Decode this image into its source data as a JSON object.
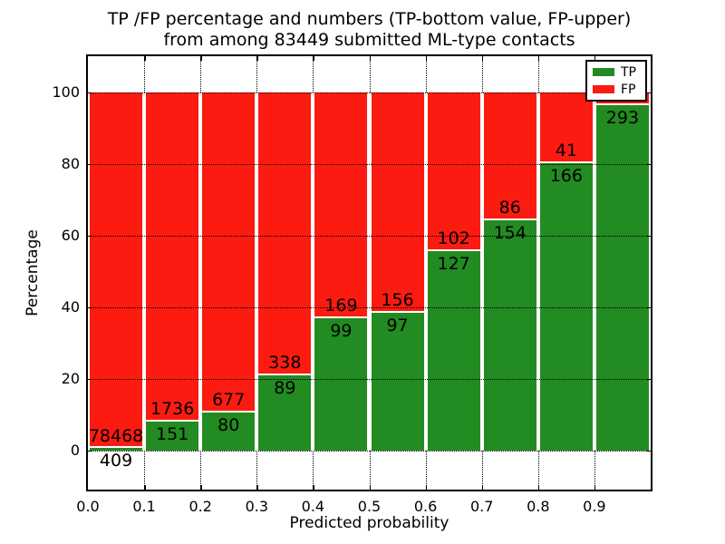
{
  "title": {
    "line1": "TP /FP percentage and numbers (TP-bottom value, FP-upper)",
    "line2": "from among 83449 submitted ML-type contacts"
  },
  "axes": {
    "xlabel": "Predicted probability",
    "ylabel": "Percentage",
    "x_tick_labels": [
      "0.0",
      "0.1",
      "0.2",
      "0.3",
      "0.4",
      "0.5",
      "0.6",
      "0.7",
      "0.8",
      "0.9"
    ],
    "y_tick_labels": [
      "0",
      "20",
      "40",
      "60",
      "80",
      "100"
    ],
    "y_tick_values": [
      0,
      20,
      40,
      60,
      80,
      100
    ]
  },
  "legend": {
    "position": "upper right",
    "items": [
      {
        "label": "TP",
        "color": "#228b22"
      },
      {
        "label": "FP",
        "color": "#fb1b11"
      }
    ]
  },
  "colors": {
    "tp_green": "#228b22",
    "fp_red": "#fb1b11",
    "grid": "#000000",
    "background": "#ffffff"
  },
  "chart_data": {
    "type": "bar",
    "stacked": true,
    "normalized": "each bar stacks to 100%",
    "title": "TP /FP percentage and numbers (TP-bottom value, FP-upper) from among 83449 submitted ML-type contacts",
    "total_submitted": 83449,
    "xlabel": "Predicted probability",
    "ylabel": "Percentage",
    "bin_width": 0.1,
    "ylim": [
      -11,
      110
    ],
    "grid": "dotted",
    "legend_position": "upper right",
    "bins": [
      {
        "x_start": 0.0,
        "tp": 409,
        "fp": 78468,
        "tp_label": "409",
        "fp_label": "78468",
        "tp_pct": 0.52
      },
      {
        "x_start": 0.1,
        "tp": 151,
        "fp": 1736,
        "tp_label": "151",
        "fp_label": "1736",
        "tp_pct": 8.0
      },
      {
        "x_start": 0.2,
        "tp": 80,
        "fp": 677,
        "tp_label": "80",
        "fp_label": "677",
        "tp_pct": 10.6
      },
      {
        "x_start": 0.3,
        "tp": 89,
        "fp": 338,
        "tp_label": "89",
        "fp_label": "338",
        "tp_pct": 20.8
      },
      {
        "x_start": 0.4,
        "tp": 99,
        "fp": 169,
        "tp_label": "99",
        "fp_label": "169",
        "tp_pct": 36.9
      },
      {
        "x_start": 0.5,
        "tp": 97,
        "fp": 156,
        "tp_label": "97",
        "fp_label": "156",
        "tp_pct": 38.3
      },
      {
        "x_start": 0.6,
        "tp": 127,
        "fp": 102,
        "tp_label": "127",
        "fp_label": "102",
        "tp_pct": 55.5
      },
      {
        "x_start": 0.7,
        "tp": 154,
        "fp": 86,
        "tp_label": "154",
        "fp_label": "86",
        "tp_pct": 64.2
      },
      {
        "x_start": 0.8,
        "tp": 166,
        "fp": 41,
        "tp_label": "166",
        "fp_label": "41",
        "tp_pct": 80.2
      },
      {
        "x_start": 0.9,
        "tp": 293,
        "fp": null,
        "tp_label": "293",
        "fp_label": "",
        "tp_pct": 96.3
      }
    ]
  }
}
